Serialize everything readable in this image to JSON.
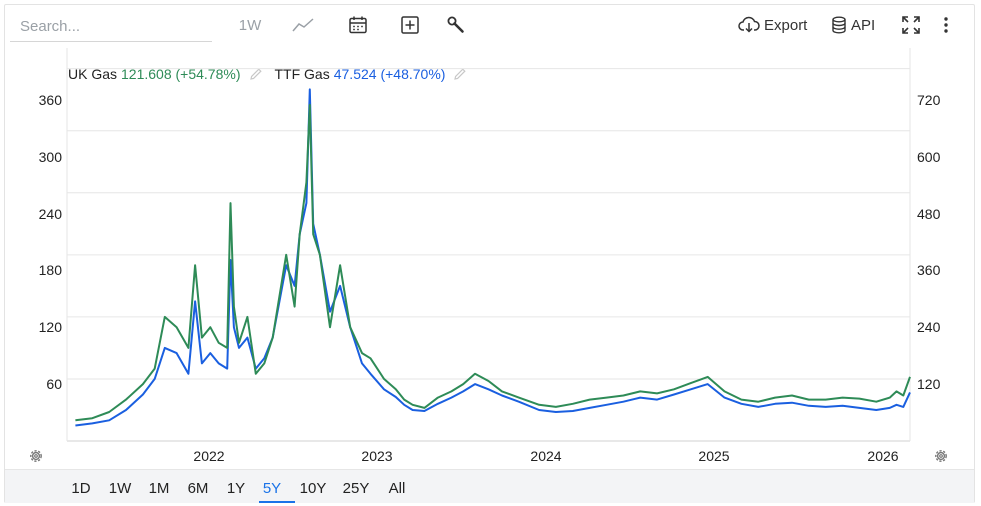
{
  "toolbar": {
    "search_placeholder": "Search...",
    "interval": "1W",
    "export_label": "Export",
    "api_label": "API",
    "icons": [
      "line-chart-icon",
      "calendar-icon",
      "add-plus-icon",
      "wrench-icon",
      "cloud-download-icon",
      "database-icon",
      "fullscreen-icon",
      "more-vertical-icon"
    ]
  },
  "legend": [
    {
      "name": "UK Gas",
      "value": "121.608 (+54.78%)",
      "color": "#2e8b57"
    },
    {
      "name": "TTF Gas",
      "value": "47.524 (+48.70%)",
      "color": "#1a5fe0"
    }
  ],
  "range_buttons": [
    "1D",
    "1W",
    "1M",
    "6M",
    "1Y",
    "5Y",
    "10Y",
    "25Y",
    "All"
  ],
  "active_range": "5Y",
  "colors": {
    "accent": "#1a73e8",
    "uk_gas": "#2e8b57",
    "ttf_gas": "#1a5fe0"
  },
  "chart_data": {
    "type": "line",
    "x_tick_labels": [
      "2022",
      "2023",
      "2024",
      "2025",
      "2026"
    ],
    "y_left_ticks": [
      "360",
      "300",
      "240",
      "180",
      "120",
      "60"
    ],
    "y_right_ticks": [
      "720",
      "600",
      "480",
      "360",
      "240",
      "120"
    ],
    "ylim_left": [
      0,
      380
    ],
    "ylim_right": [
      0,
      760
    ],
    "grid": true,
    "x": [
      2021.25,
      2021.35,
      2021.45,
      2021.55,
      2021.65,
      2021.72,
      2021.78,
      2021.85,
      2021.92,
      2021.96,
      2022.0,
      2022.05,
      2022.1,
      2022.15,
      2022.17,
      2022.19,
      2022.22,
      2022.27,
      2022.32,
      2022.37,
      2022.42,
      2022.5,
      2022.55,
      2022.58,
      2022.62,
      2022.64,
      2022.66,
      2022.7,
      2022.76,
      2022.82,
      2022.88,
      2022.95,
      2023.0,
      2023.08,
      2023.15,
      2023.2,
      2023.25,
      2023.32,
      2023.4,
      2023.48,
      2023.55,
      2023.62,
      2023.7,
      2023.78,
      2023.88,
      2024.0,
      2024.1,
      2024.2,
      2024.3,
      2024.4,
      2024.5,
      2024.6,
      2024.7,
      2024.8,
      2024.9,
      2025.0,
      2025.1,
      2025.2,
      2025.3,
      2025.4,
      2025.5,
      2025.6,
      2025.7,
      2025.8,
      2025.9,
      2026.0,
      2026.08,
      2026.12,
      2026.16,
      2026.2
    ],
    "series": [
      {
        "name": "UK Gas",
        "axis": "left",
        "values": [
          20,
          22,
          28,
          40,
          55,
          70,
          120,
          110,
          90,
          170,
          100,
          110,
          95,
          90,
          230,
          130,
          95,
          120,
          65,
          75,
          100,
          180,
          130,
          200,
          250,
          325,
          200,
          180,
          110,
          170,
          110,
          85,
          80,
          60,
          50,
          40,
          35,
          32,
          42,
          48,
          55,
          65,
          58,
          48,
          42,
          35,
          33,
          36,
          40,
          42,
          44,
          48,
          46,
          50,
          56,
          62,
          48,
          40,
          38,
          42,
          44,
          40,
          40,
          42,
          41,
          38,
          42,
          48,
          44,
          62
        ]
      },
      {
        "name": "TTF Gas",
        "axis": "right",
        "values": [
          30,
          34,
          40,
          60,
          90,
          120,
          180,
          170,
          130,
          270,
          150,
          170,
          150,
          140,
          350,
          220,
          180,
          200,
          140,
          160,
          200,
          340,
          300,
          400,
          460,
          680,
          420,
          360,
          250,
          300,
          220,
          150,
          130,
          100,
          85,
          70,
          60,
          58,
          72,
          84,
          96,
          110,
          100,
          88,
          76,
          60,
          56,
          58,
          64,
          70,
          76,
          84,
          80,
          90,
          100,
          110,
          84,
          72,
          66,
          72,
          74,
          68,
          66,
          68,
          64,
          60,
          64,
          70,
          66,
          94
        ]
      }
    ]
  }
}
